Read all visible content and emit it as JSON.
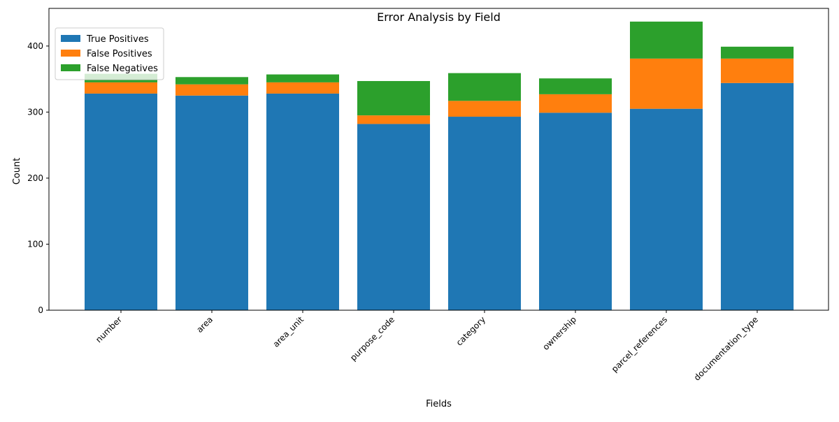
{
  "chart_data": {
    "type": "bar",
    "stacked": true,
    "title": "Error Analysis by Field",
    "xlabel": "Fields",
    "ylabel": "Count",
    "ylim": [
      0,
      457
    ],
    "yticks": [
      0,
      100,
      200,
      300,
      400
    ],
    "grid": false,
    "legend_position": "top-left",
    "categories": [
      "number",
      "area",
      "area_unit",
      "purpose_code",
      "category",
      "ownership",
      "parcel_references",
      "documentation_type"
    ],
    "series": [
      {
        "name": "True Positives",
        "color": "#1f77b4",
        "values": [
          328,
          325,
          328,
          282,
          293,
          299,
          305,
          344
        ]
      },
      {
        "name": "False Positives",
        "color": "#ff7f0e",
        "values": [
          17,
          17,
          17,
          13,
          24,
          28,
          76,
          37
        ]
      },
      {
        "name": "False Negatives",
        "color": "#2ca02c",
        "values": [
          13,
          11,
          12,
          52,
          42,
          24,
          56,
          18
        ]
      }
    ]
  }
}
